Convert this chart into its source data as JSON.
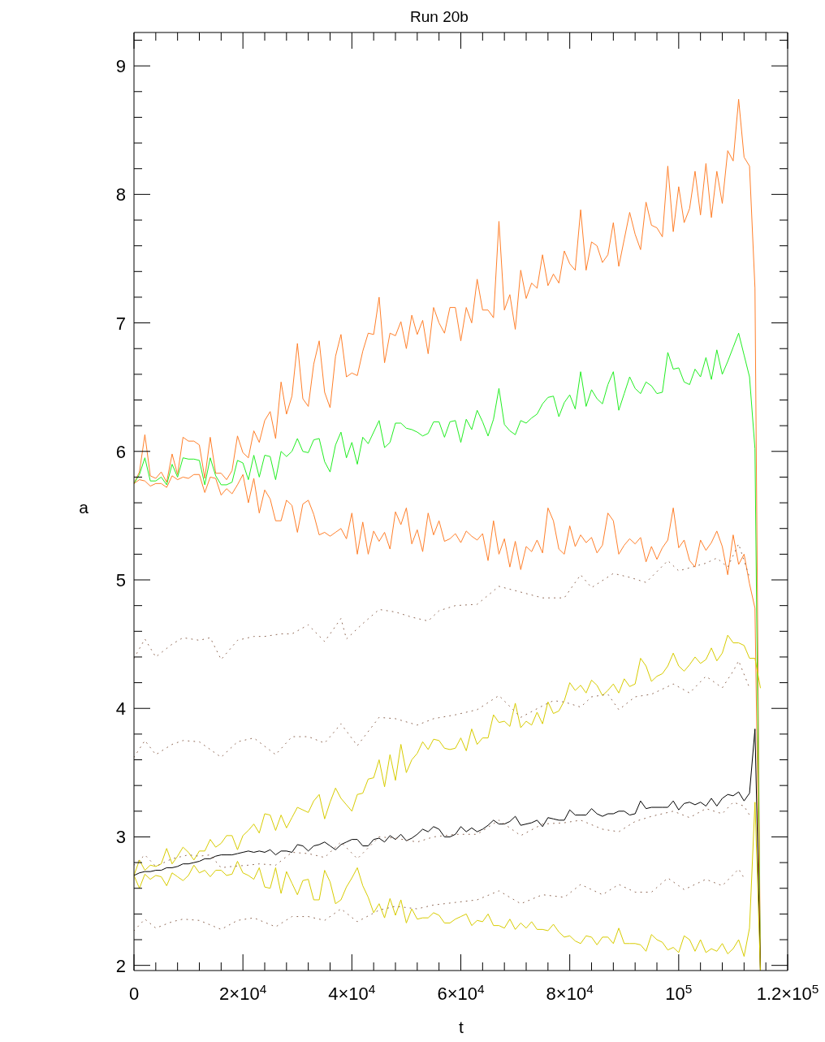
{
  "chart_data": {
    "type": "line",
    "title": "Run 20b",
    "xlabel": "t",
    "ylabel": "a",
    "xlim": [
      0,
      120000
    ],
    "ylim": [
      1.96,
      9.26
    ],
    "xticks": [
      0,
      {
        "value": 4000,
        "label": null
      },
      {
        "value": 8000,
        "label": null
      },
      {
        "value": 12000,
        "label": null
      },
      {
        "value": 16000,
        "label": null
      },
      {
        "value": 20000,
        "label": "2×10$^{4}$"
      },
      {
        "value": 24000,
        "label": null
      },
      {
        "value": 28000,
        "label": null
      },
      {
        "value": 32000,
        "label": null
      },
      {
        "value": 36000,
        "label": null
      },
      {
        "value": 40000,
        "label": "4×10$^{4}$"
      },
      {
        "value": 44000,
        "label": null
      },
      {
        "value": 48000,
        "label": null
      },
      {
        "value": 52000,
        "label": null
      },
      {
        "value": 56000,
        "label": null
      },
      {
        "value": 60000,
        "label": "6×10$^{4}$"
      },
      {
        "value": 64000,
        "label": null
      },
      {
        "value": 68000,
        "label": null
      },
      {
        "value": 72000,
        "label": null
      },
      {
        "value": 76000,
        "label": null
      },
      {
        "value": 80000,
        "label": "8×10$^{4}$"
      },
      {
        "value": 84000,
        "label": null
      },
      {
        "value": 88000,
        "label": null
      },
      {
        "value": 92000,
        "label": null
      },
      {
        "value": 96000,
        "label": null
      },
      {
        "value": 100000,
        "label": "10$^{5}$"
      },
      {
        "value": 104000,
        "label": null
      },
      {
        "value": 108000,
        "label": null
      },
      {
        "value": 112000,
        "label": null
      },
      {
        "value": 116000,
        "label": null
      },
      {
        "value": 120000,
        "label": "1.2×10$^{5}$"
      }
    ],
    "yticks": [
      2,
      {
        "value": 2.2,
        "label": null
      },
      {
        "value": 2.4,
        "label": null
      },
      {
        "value": 2.6,
        "label": null
      },
      {
        "value": 2.8,
        "label": null
      },
      3,
      {
        "value": 3.2,
        "label": null
      },
      {
        "value": 3.4,
        "label": null
      },
      {
        "value": 3.6,
        "label": null
      },
      {
        "value": 3.8,
        "label": null
      },
      4,
      {
        "value": 4.2,
        "label": null
      },
      {
        "value": 4.4,
        "label": null
      },
      {
        "value": 4.6,
        "label": null
      },
      {
        "value": 4.8,
        "label": null
      },
      5,
      {
        "value": 5.2,
        "label": null
      },
      {
        "value": 5.4,
        "label": null
      },
      {
        "value": 5.6,
        "label": null
      },
      {
        "value": 5.8,
        "label": null
      },
      6,
      {
        "value": 6.2,
        "label": null
      },
      {
        "value": 6.4,
        "label": null
      },
      {
        "value": 6.6,
        "label": null
      },
      {
        "value": 6.8,
        "label": null
      },
      7,
      {
        "value": 7.2,
        "label": null
      },
      {
        "value": 7.4,
        "label": null
      },
      {
        "value": 7.6,
        "label": null
      },
      {
        "value": 7.8,
        "label": null
      },
      8,
      {
        "value": 8.2,
        "label": null
      },
      {
        "value": 8.4,
        "label": null
      },
      {
        "value": 8.6,
        "label": null
      },
      {
        "value": 8.8,
        "label": null
      },
      9,
      {
        "value": 9.2,
        "label": null
      }
    ],
    "x": [
      0,
      1000,
      2000,
      3000,
      4000,
      5000,
      6000,
      7000,
      8000,
      9000,
      10000,
      11000,
      12000,
      13000,
      14000,
      15000,
      16000,
      17000,
      18000,
      19000,
      20000,
      21000,
      22000,
      23000,
      24000,
      25000,
      26000,
      27000,
      28000,
      29000,
      30000,
      31000,
      32000,
      33000,
      34000,
      35000,
      36000,
      37000,
      38000,
      39000,
      40000,
      41000,
      42000,
      43000,
      44000,
      45000,
      46000,
      47000,
      48000,
      49000,
      50000,
      51000,
      52000,
      53000,
      54000,
      55000,
      56000,
      57000,
      58000,
      59000,
      60000,
      61000,
      62000,
      63000,
      64000,
      65000,
      66000,
      67000,
      68000,
      69000,
      70000,
      71000,
      72000,
      73000,
      74000,
      75000,
      76000,
      77000,
      78000,
      79000,
      80000,
      81000,
      82000,
      83000,
      84000,
      85000,
      86000,
      87000,
      88000,
      89000,
      90000,
      91000,
      92000,
      93000,
      94000,
      95000,
      96000,
      97000,
      98000,
      99000,
      100000,
      101000,
      102000,
      103000,
      104000,
      105000,
      106000,
      107000,
      108000,
      109000,
      110000,
      111000,
      112000,
      113000,
      114000,
      115000
    ],
    "series": [
      {
        "color": "#ff7f2a",
        "values": [
          5.75,
          5.84,
          6.13,
          5.81,
          5.79,
          5.84,
          5.76,
          5.98,
          5.82,
          6.11,
          6.08,
          6.08,
          6.05,
          5.79,
          6.11,
          5.83,
          5.83,
          5.78,
          5.85,
          6.12,
          5.99,
          5.95,
          6.16,
          6.07,
          6.24,
          6.31,
          6.1,
          6.54,
          6.29,
          6.43,
          6.84,
          6.41,
          6.35,
          6.68,
          6.86,
          6.46,
          6.34,
          6.74,
          6.91,
          6.58,
          6.61,
          6.59,
          6.78,
          6.92,
          6.91,
          7.2,
          6.69,
          6.92,
          6.9,
          7.01,
          6.8,
          7.06,
          6.91,
          7.02,
          6.76,
          7.12,
          7.0,
          6.92,
          7.12,
          7.12,
          6.86,
          7.12,
          7.0,
          7.34,
          7.1,
          7.1,
          7.04,
          7.79,
          7.1,
          7.22,
          6.95,
          7.41,
          7.19,
          7.31,
          7.27,
          7.53,
          7.29,
          7.38,
          7.31,
          7.56,
          7.46,
          7.41,
          7.88,
          7.41,
          7.63,
          7.6,
          7.47,
          7.53,
          7.78,
          7.44,
          7.65,
          7.86,
          7.69,
          7.57,
          7.94,
          7.76,
          7.74,
          7.67,
          8.22,
          7.71,
          8.06,
          7.78,
          7.89,
          8.18,
          7.84,
          8.24,
          7.82,
          8.18,
          7.93,
          8.34,
          8.26,
          8.74,
          8.29,
          8.22,
          7.27,
          1.96
        ]
      },
      {
        "color": "#22ee22",
        "values": [
          5.75,
          5.82,
          5.95,
          5.77,
          5.77,
          5.8,
          5.74,
          5.9,
          5.8,
          5.95,
          5.94,
          5.94,
          5.93,
          5.74,
          5.95,
          5.81,
          5.74,
          5.74,
          5.76,
          5.93,
          5.91,
          5.78,
          5.97,
          5.8,
          5.97,
          5.96,
          5.78,
          6.0,
          5.96,
          6.0,
          6.1,
          6.0,
          5.99,
          6.09,
          6.1,
          5.92,
          5.84,
          6.05,
          6.15,
          5.95,
          6.07,
          5.9,
          6.11,
          6.06,
          6.15,
          6.24,
          6.03,
          6.07,
          6.22,
          6.22,
          6.18,
          6.17,
          6.15,
          6.12,
          6.14,
          6.23,
          6.23,
          6.11,
          6.23,
          6.24,
          6.07,
          6.25,
          6.17,
          6.32,
          6.23,
          6.12,
          6.25,
          6.49,
          6.21,
          6.16,
          6.13,
          6.24,
          6.22,
          6.26,
          6.29,
          6.37,
          6.42,
          6.43,
          6.27,
          6.38,
          6.44,
          6.33,
          6.62,
          6.35,
          6.48,
          6.41,
          6.37,
          6.52,
          6.62,
          6.32,
          6.45,
          6.58,
          6.49,
          6.45,
          6.54,
          6.51,
          6.45,
          6.46,
          6.77,
          6.64,
          6.65,
          6.54,
          6.52,
          6.64,
          6.58,
          6.73,
          6.56,
          6.79,
          6.6,
          6.7,
          6.81,
          6.92,
          6.75,
          6.58,
          6.02,
          1.96
        ]
      },
      {
        "color": "#ff7f2a",
        "values": [
          5.75,
          5.78,
          5.77,
          5.73,
          5.75,
          5.75,
          5.72,
          5.81,
          5.78,
          5.8,
          5.79,
          5.82,
          5.82,
          5.68,
          5.8,
          5.79,
          5.66,
          5.71,
          5.67,
          5.74,
          5.82,
          5.6,
          5.79,
          5.52,
          5.7,
          5.63,
          5.46,
          5.46,
          5.62,
          5.58,
          5.37,
          5.59,
          5.62,
          5.51,
          5.35,
          5.37,
          5.34,
          5.37,
          5.4,
          5.32,
          5.52,
          5.2,
          5.45,
          5.2,
          5.38,
          5.3,
          5.37,
          5.24,
          5.53,
          5.43,
          5.56,
          5.28,
          5.39,
          5.22,
          5.52,
          5.35,
          5.46,
          5.3,
          5.32,
          5.36,
          5.29,
          5.38,
          5.34,
          5.31,
          5.36,
          5.15,
          5.46,
          5.2,
          5.32,
          5.1,
          5.3,
          5.08,
          5.26,
          5.22,
          5.31,
          5.21,
          5.56,
          5.46,
          5.24,
          5.2,
          5.42,
          5.26,
          5.35,
          5.29,
          5.33,
          5.21,
          5.27,
          5.52,
          5.46,
          5.2,
          5.27,
          5.32,
          5.28,
          5.33,
          5.14,
          5.26,
          5.16,
          5.25,
          5.31,
          5.56,
          5.25,
          5.31,
          5.15,
          5.1,
          5.31,
          5.23,
          5.29,
          5.38,
          5.26,
          5.04,
          5.35,
          5.12,
          5.2,
          4.97,
          4.78,
          1.96
        ]
      },
      {
        "color": "#d8cc00",
        "values": [
          2.7,
          2.82,
          2.74,
          2.78,
          2.77,
          2.79,
          2.91,
          2.79,
          2.85,
          2.92,
          2.88,
          2.82,
          2.89,
          2.89,
          2.98,
          2.92,
          2.95,
          3.01,
          3.01,
          2.9,
          3.01,
          3.05,
          3.1,
          3.03,
          3.18,
          3.17,
          3.05,
          3.17,
          3.07,
          3.15,
          3.23,
          3.21,
          3.19,
          3.28,
          3.33,
          3.14,
          3.27,
          3.38,
          3.3,
          3.25,
          3.2,
          3.33,
          3.34,
          3.45,
          3.46,
          3.6,
          3.39,
          3.64,
          3.44,
          3.72,
          3.5,
          3.6,
          3.65,
          3.74,
          3.68,
          3.76,
          3.75,
          3.69,
          3.68,
          3.69,
          3.77,
          3.67,
          3.84,
          3.72,
          3.77,
          3.77,
          3.95,
          3.89,
          3.9,
          3.86,
          4.04,
          3.85,
          3.9,
          3.87,
          3.97,
          3.88,
          4.05,
          3.96,
          3.98,
          4.06,
          4.2,
          4.14,
          4.18,
          4.12,
          4.22,
          4.18,
          4.1,
          4.14,
          4.19,
          4.12,
          4.23,
          4.17,
          4.19,
          4.39,
          4.33,
          4.21,
          4.25,
          4.27,
          4.33,
          4.43,
          4.33,
          4.29,
          4.34,
          4.4,
          4.35,
          4.38,
          4.47,
          4.37,
          4.43,
          4.57,
          4.51,
          4.51,
          4.49,
          4.39,
          4.39,
          4.16
        ]
      },
      {
        "color": "#000000",
        "values": [
          2.7,
          2.72,
          2.73,
          2.73,
          2.74,
          2.74,
          2.76,
          2.76,
          2.77,
          2.79,
          2.79,
          2.8,
          2.81,
          2.83,
          2.83,
          2.85,
          2.86,
          2.86,
          2.86,
          2.87,
          2.88,
          2.89,
          2.88,
          2.89,
          2.88,
          2.9,
          2.86,
          2.89,
          2.89,
          2.88,
          2.94,
          2.93,
          2.89,
          2.93,
          2.94,
          2.96,
          2.93,
          2.9,
          2.94,
          2.96,
          2.98,
          2.98,
          2.93,
          2.93,
          2.98,
          2.99,
          2.96,
          3.01,
          2.98,
          3.02,
          2.97,
          2.99,
          3.02,
          3.06,
          3.04,
          3.08,
          3.06,
          3.0,
          3.0,
          3.02,
          3.08,
          3.04,
          3.07,
          3.04,
          3.06,
          3.09,
          3.13,
          3.1,
          3.1,
          3.12,
          3.16,
          3.09,
          3.1,
          3.11,
          3.13,
          3.08,
          3.15,
          3.14,
          3.13,
          3.13,
          3.21,
          3.17,
          3.17,
          3.17,
          3.22,
          3.18,
          3.16,
          3.18,
          3.18,
          3.2,
          3.2,
          3.17,
          3.18,
          3.28,
          3.22,
          3.23,
          3.23,
          3.23,
          3.23,
          3.28,
          3.21,
          3.26,
          3.27,
          3.25,
          3.27,
          3.24,
          3.3,
          3.24,
          3.3,
          3.33,
          3.32,
          3.35,
          3.28,
          3.34,
          3.84,
          1.96
        ]
      },
      {
        "color": "#d8cc00",
        "values": [
          2.7,
          2.6,
          2.71,
          2.67,
          2.7,
          2.69,
          2.62,
          2.72,
          2.69,
          2.66,
          2.7,
          2.78,
          2.72,
          2.74,
          2.69,
          2.74,
          2.74,
          2.7,
          2.71,
          2.81,
          2.72,
          2.7,
          2.67,
          2.76,
          2.61,
          2.6,
          2.76,
          2.56,
          2.73,
          2.64,
          2.55,
          2.66,
          2.67,
          2.51,
          2.51,
          2.74,
          2.65,
          2.48,
          2.51,
          2.61,
          2.68,
          2.76,
          2.62,
          2.53,
          2.41,
          2.48,
          2.37,
          2.52,
          2.39,
          2.51,
          2.33,
          2.44,
          2.36,
          2.37,
          2.37,
          2.41,
          2.39,
          2.33,
          2.33,
          2.36,
          2.38,
          2.4,
          2.31,
          2.35,
          2.34,
          2.4,
          2.31,
          2.31,
          2.29,
          2.36,
          2.28,
          2.33,
          2.29,
          2.34,
          2.28,
          2.28,
          2.27,
          2.32,
          2.26,
          2.22,
          2.23,
          2.19,
          2.17,
          2.23,
          2.22,
          2.16,
          2.22,
          2.22,
          2.17,
          2.29,
          2.17,
          2.17,
          2.17,
          2.16,
          2.11,
          2.24,
          2.2,
          2.18,
          2.12,
          2.14,
          2.1,
          2.23,
          2.2,
          2.11,
          2.2,
          2.1,
          2.13,
          2.11,
          2.17,
          2.09,
          2.13,
          2.2,
          2.07,
          2.29,
          3.27,
          1.96
        ]
      },
      {
        "color": "#8c6450",
        "line_style": "dotted",
        "x": [
          0,
          2000,
          4000,
          7000,
          9000,
          12000,
          14000,
          16000,
          19000,
          22000,
          24000,
          27000,
          29000,
          32000,
          35000,
          38000,
          39000,
          42000,
          45000,
          48000,
          51000,
          54000,
          56000,
          59000,
          63000,
          67000,
          75000,
          79000,
          82000,
          84000,
          88000,
          91000,
          94000,
          98000,
          100000,
          105000,
          107000,
          109000,
          111000,
          112000,
          113000
        ],
        "values": [
          4.39,
          4.54,
          4.4,
          4.5,
          4.55,
          4.53,
          4.55,
          4.38,
          4.53,
          4.56,
          4.56,
          4.58,
          4.58,
          4.65,
          4.52,
          4.7,
          4.54,
          4.66,
          4.77,
          4.75,
          4.71,
          4.68,
          4.76,
          4.8,
          4.81,
          4.95,
          4.86,
          4.86,
          5.04,
          4.94,
          5.05,
          5.02,
          4.98,
          5.15,
          5.07,
          5.13,
          5.17,
          5.1,
          5.28,
          5.15,
          5.02
        ]
      },
      {
        "color": "#8c6450",
        "line_style": "dotted",
        "x": [
          0,
          2000,
          4000,
          7000,
          9000,
          12000,
          16000,
          19000,
          22000,
          26000,
          29000,
          32000,
          35000,
          38000,
          41000,
          45000,
          48000,
          52000,
          55000,
          59000,
          63000,
          67000,
          71000,
          75000,
          77000,
          79000,
          82000,
          84000,
          87000,
          89000,
          92000,
          95000,
          99000,
          102000,
          105000,
          108000,
          110000,
          111000,
          113000
        ],
        "values": [
          3.62,
          3.75,
          3.64,
          3.72,
          3.75,
          3.74,
          3.62,
          3.74,
          3.77,
          3.64,
          3.78,
          3.78,
          3.73,
          3.88,
          3.71,
          3.93,
          3.92,
          3.87,
          3.92,
          3.95,
          3.99,
          4.1,
          3.93,
          4.02,
          4.06,
          4.05,
          4.01,
          4.09,
          4.11,
          3.99,
          4.09,
          4.11,
          4.19,
          4.12,
          4.25,
          4.16,
          4.29,
          4.37,
          4.16
        ]
      },
      {
        "color": "#8c6450",
        "line_style": "dotted",
        "x": [
          0,
          2000,
          4000,
          7000,
          10000,
          12000,
          14000,
          16000,
          18000,
          21000,
          23000,
          26000,
          29000,
          32000,
          35000,
          38000,
          41000,
          45000,
          48000,
          52000,
          55000,
          59000,
          63000,
          67000,
          71000,
          75000,
          79000,
          82000,
          86000,
          89000,
          92000,
          95000,
          99000,
          102000,
          105000,
          108000,
          110000,
          112000,
          113000
        ],
        "values": [
          2.78,
          2.86,
          2.77,
          2.83,
          2.86,
          2.85,
          2.86,
          2.76,
          2.77,
          2.78,
          2.79,
          2.78,
          2.88,
          2.87,
          2.84,
          2.96,
          2.83,
          3.0,
          2.99,
          2.96,
          3.0,
          3.02,
          3.02,
          3.13,
          3.01,
          3.1,
          3.11,
          3.13,
          3.06,
          3.04,
          3.12,
          3.16,
          3.2,
          3.15,
          3.22,
          3.18,
          3.27,
          3.24,
          3.17
        ]
      },
      {
        "color": "#8c6450",
        "line_style": "dotted",
        "x": [
          0,
          2000,
          4000,
          7000,
          9000,
          12000,
          16000,
          19000,
          22000,
          26000,
          29000,
          32000,
          35000,
          38000,
          41000,
          45000,
          48000,
          52000,
          55000,
          59000,
          63000,
          67000,
          71000,
          75000,
          79000,
          82000,
          86000,
          89000,
          92000,
          95000,
          98000,
          101000,
          105000,
          108000,
          111000,
          112000
        ],
        "values": [
          2.27,
          2.36,
          2.29,
          2.34,
          2.36,
          2.35,
          2.28,
          2.35,
          2.37,
          2.3,
          2.38,
          2.38,
          2.35,
          2.44,
          2.34,
          2.43,
          2.46,
          2.44,
          2.47,
          2.49,
          2.51,
          2.58,
          2.48,
          2.55,
          2.53,
          2.63,
          2.55,
          2.63,
          2.57,
          2.57,
          2.68,
          2.59,
          2.67,
          2.62,
          2.75,
          2.68
        ]
      }
    ]
  }
}
